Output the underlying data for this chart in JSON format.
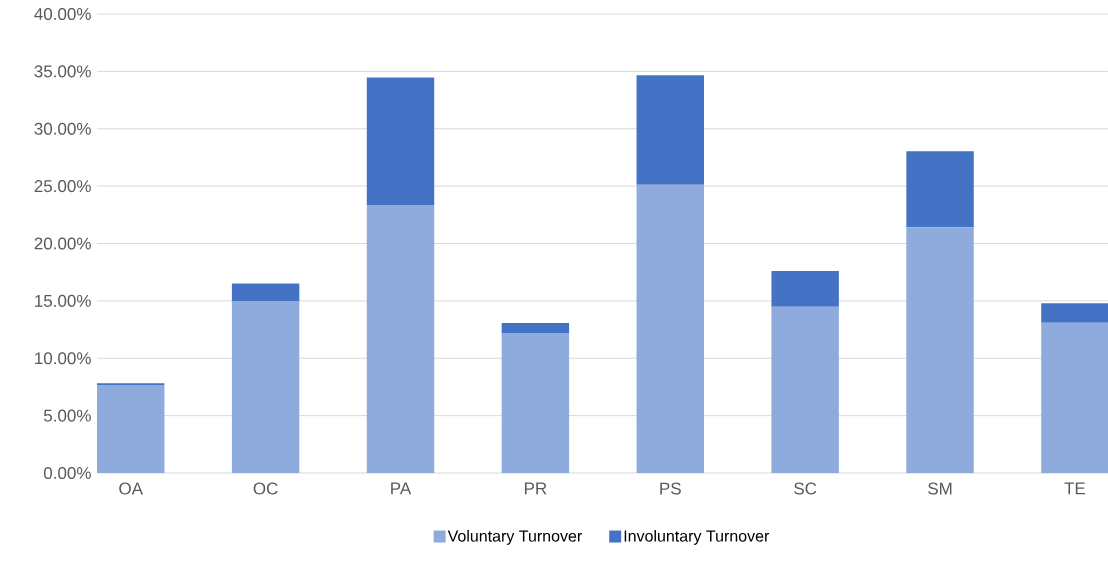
{
  "chart_data": {
    "type": "bar",
    "stacked": true,
    "categories": [
      "OA",
      "OC",
      "PA",
      "PR",
      "PS",
      "SC",
      "SM",
      "TE"
    ],
    "series": [
      {
        "name": "Voluntary Turnover",
        "color": "#8faadc",
        "values": [
          7.67,
          15.0,
          23.35,
          12.2,
          25.11,
          14.48,
          21.42,
          13.09
        ]
      },
      {
        "name": "Involuntary Turnover",
        "color": "#4472c4",
        "values": [
          0.16,
          1.52,
          11.12,
          0.87,
          9.56,
          3.12,
          6.62,
          1.7
        ]
      }
    ],
    "ylim": [
      0,
      40
    ],
    "yticks": [
      {
        "value": 0,
        "label": "0.00%"
      },
      {
        "value": 5,
        "label": "5.00%"
      },
      {
        "value": 10,
        "label": "10.00%"
      },
      {
        "value": 15,
        "label": "15.00%"
      },
      {
        "value": 20,
        "label": "20.00%"
      },
      {
        "value": 25,
        "label": "25.00%"
      },
      {
        "value": 30,
        "label": "30.00%"
      },
      {
        "value": 35,
        "label": "35.00%"
      },
      {
        "value": 40,
        "label": "40.00%"
      }
    ],
    "grid": "y",
    "legend": "bottom"
  }
}
